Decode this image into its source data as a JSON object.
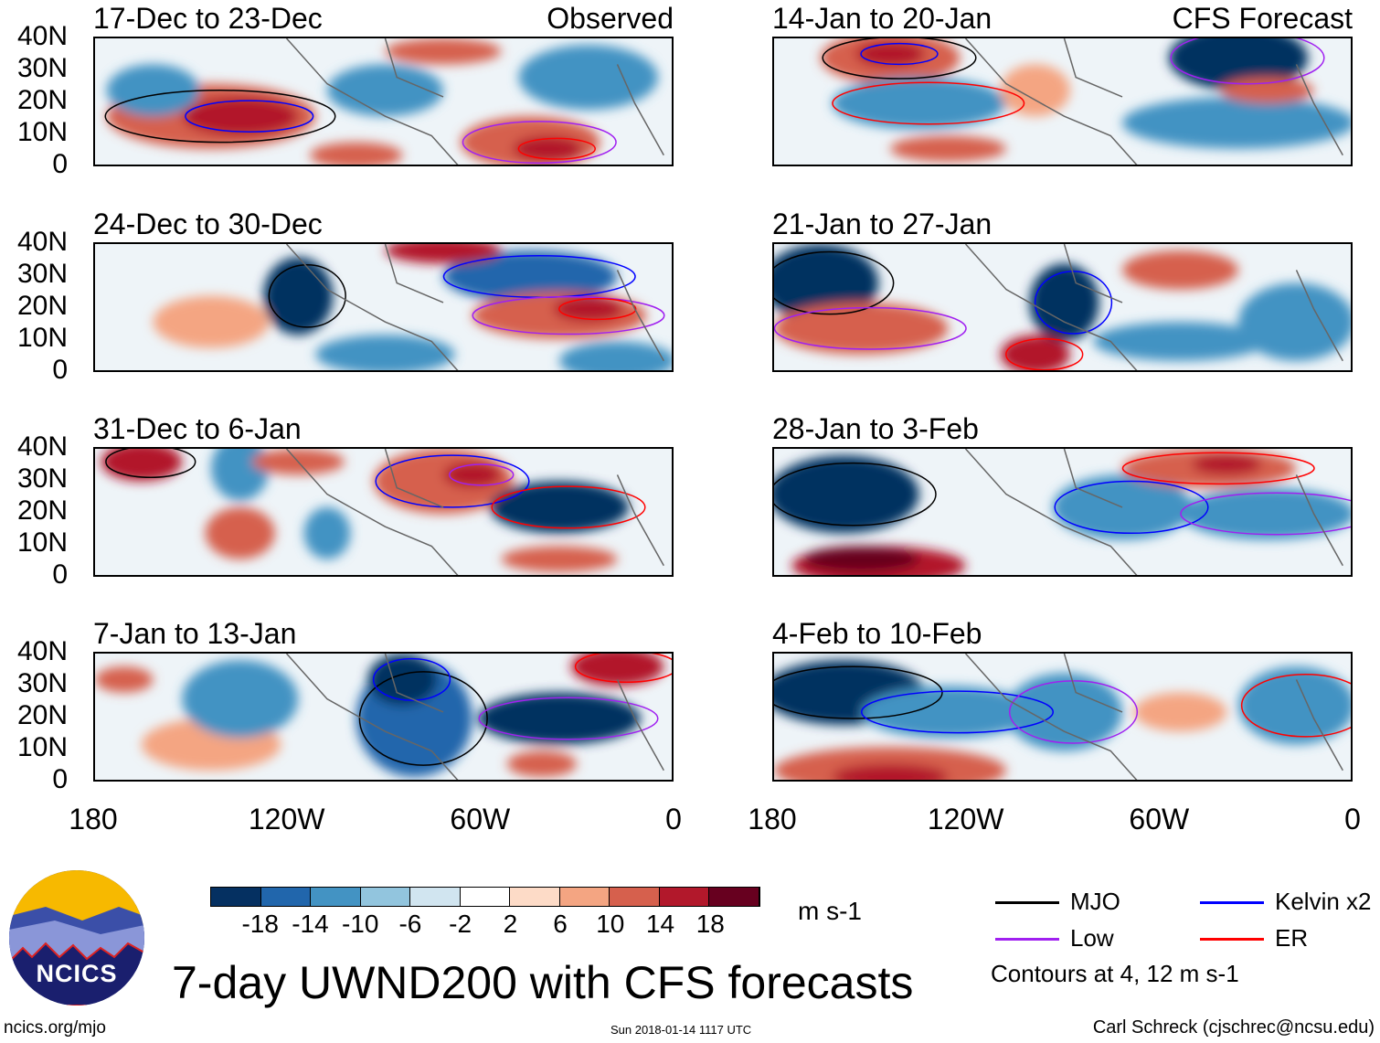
{
  "panels": [
    {
      "title": "17-Dec to 23-Dec",
      "tag": "Observed"
    },
    {
      "title": "24-Dec to 30-Dec"
    },
    {
      "title": "31-Dec to 6-Jan"
    },
    {
      "title": "7-Jan to 13-Jan"
    },
    {
      "title": "14-Jan to 20-Jan",
      "tag": "CFS Forecast"
    },
    {
      "title": "21-Jan to 27-Jan"
    },
    {
      "title": "28-Jan to 3-Feb"
    },
    {
      "title": "4-Feb to 10-Feb"
    }
  ],
  "y_ticks": [
    "40N",
    "30N",
    "20N",
    "10N",
    "0"
  ],
  "x_ticks": [
    "180",
    "120W",
    "60W",
    "0"
  ],
  "colorbar": {
    "colors": [
      "#053061",
      "#2166ac",
      "#4393c3",
      "#92c5de",
      "#d1e5f0",
      "#ffffff",
      "#fddbc7",
      "#f4a582",
      "#d6604d",
      "#b2182b",
      "#67001f"
    ],
    "labels": [
      "-18",
      "-14",
      "-10",
      "-6",
      "-2",
      "2",
      "6",
      "10",
      "14",
      "18"
    ],
    "units": "m s-1"
  },
  "legend": {
    "items": [
      {
        "label": "MJO",
        "color": "#000000"
      },
      {
        "label": "Kelvin x2",
        "color": "#0000ff"
      },
      {
        "label": "Low",
        "color": "#a020f0"
      },
      {
        "label": "ER",
        "color": "#ff0000"
      }
    ],
    "note": "Contours at 4, 12 m s-1"
  },
  "title": "7-day UWND200 with CFS forecasts",
  "logo_text": "NCICS",
  "footer": {
    "left": "ncics.org/mjo",
    "center": "Sun 2018-01-14 1117 UTC",
    "right": "Carl Schreck (cjschrec@ncsu.edu)"
  }
}
